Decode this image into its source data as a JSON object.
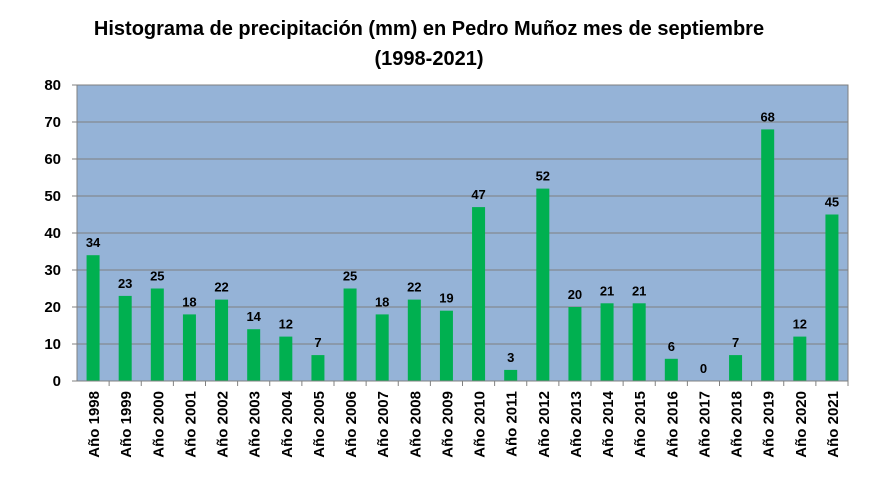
{
  "chart_data": {
    "type": "bar",
    "title": "Histograma de precipitación (mm) en Pedro Muñoz mes de septiembre",
    "subtitle": "(1998-2021)",
    "xlabel": "",
    "ylabel": "",
    "categories": [
      "Año 1998",
      "Año 1999",
      "Año 2000",
      "Año 2001",
      "Año 2002",
      "Año 2003",
      "Año 2004",
      "Año 2005",
      "Año 2006",
      "Año 2007",
      "Año 2008",
      "Año 2009",
      "Año 2010",
      "Año 2011",
      "Año 2012",
      "Año 2013",
      "Año 2014",
      "Año 2015",
      "Año 2016",
      "Año 2017",
      "Año 2018",
      "Año 2019",
      "Año 2020",
      "Año 2021"
    ],
    "values": [
      34,
      23,
      25,
      18,
      22,
      14,
      12,
      7,
      25,
      18,
      22,
      19,
      47,
      3,
      52,
      20,
      21,
      21,
      6,
      0,
      7,
      68,
      12,
      45
    ],
    "ylim": [
      0,
      80
    ],
    "yticks": [
      0,
      10,
      20,
      30,
      40,
      50,
      60,
      70,
      80
    ],
    "grid": true,
    "legend": "none",
    "data_labels": true,
    "colors": {
      "plot_background": "#95B3D7",
      "bar": "#00B050",
      "grid": "#7f7f7f"
    }
  }
}
